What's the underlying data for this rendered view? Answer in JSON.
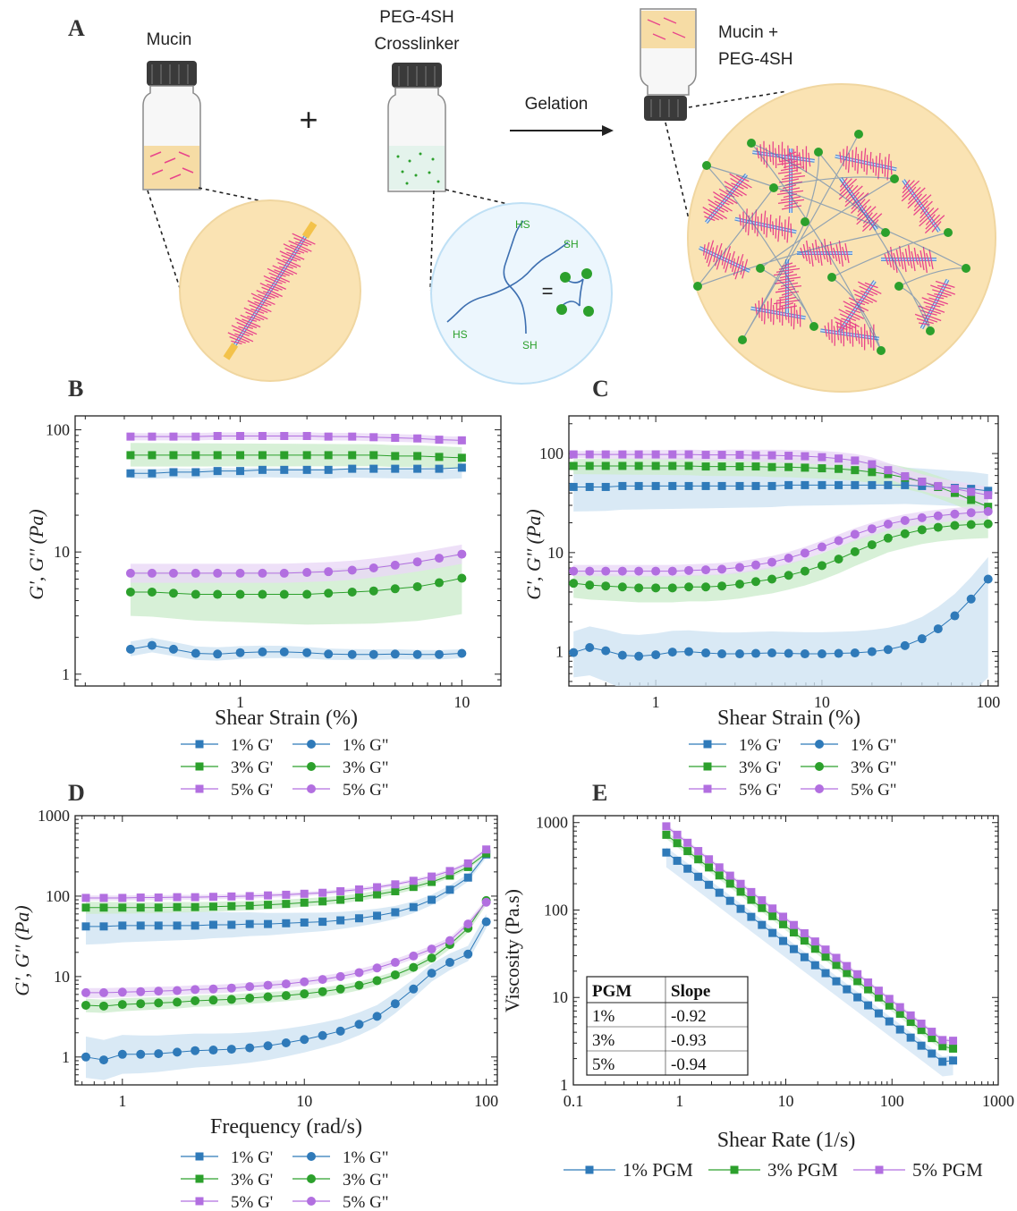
{
  "panel_labels": {
    "A": "A",
    "B": "B",
    "C": "C",
    "D": "D",
    "E": "E"
  },
  "schematic": {
    "mucin_label": "Mucin",
    "plus": "+",
    "crosslinker_label_1": "PEG-4SH",
    "crosslinker_label_2": "Crosslinker",
    "gelation_label": "Gelation",
    "product_label_1": "Mucin +",
    "product_label_2": "PEG-4SH",
    "equals": "=",
    "thiol_labels": [
      "HS",
      "SH",
      "HS",
      "SH"
    ]
  },
  "colors": {
    "c1": "#2f7ab9",
    "c3": "#2ca02c",
    "c5": "#b26fe0",
    "band1": "#cfe3f3",
    "band3": "#cdeccd",
    "band5": "#ead8f6",
    "mucin_pink": "#e8458b",
    "circle_fill": "#fae3b3",
    "peg_blue": "#dcefff"
  },
  "chart_data": [
    {
      "panel": "B",
      "type": "line",
      "xscale": "log",
      "yscale": "log",
      "xlim": [
        0.18,
        15
      ],
      "ylim": [
        0.8,
        130
      ],
      "xlabel": "Shear Strain (%)",
      "ylabel": "G', G'' (Pa)",
      "xticks": [
        {
          "v": 1,
          "t": "1"
        },
        {
          "v": 10,
          "t": "10"
        }
      ],
      "yticks": [
        {
          "v": 1,
          "t": "1"
        },
        {
          "v": 10,
          "t": "10"
        },
        {
          "v": 100,
          "t": "100"
        }
      ],
      "x": [
        0.32,
        0.4,
        0.5,
        0.63,
        0.79,
        1,
        1.26,
        1.58,
        2,
        2.5,
        3.2,
        4,
        5,
        6.3,
        7.9,
        10
      ],
      "series": [
        {
          "name": "1% G'",
          "color": "c1",
          "marker": "square",
          "values": [
            44,
            44,
            45,
            45,
            46,
            46,
            47,
            47,
            47,
            47,
            48,
            48,
            48,
            48,
            48,
            49
          ],
          "band": [
            [
              40,
              48
            ],
            [
              40,
              48
            ]
          ]
        },
        {
          "name": "3% G'",
          "color": "c3",
          "marker": "square",
          "values": [
            62,
            62,
            62,
            62,
            62,
            62,
            62,
            62,
            62,
            62,
            62,
            62,
            61,
            61,
            60,
            59
          ],
          "band": [
            [
              50,
              78
            ],
            [
              48,
              72
            ]
          ]
        },
        {
          "name": "5% G'",
          "color": "c5",
          "marker": "square",
          "values": [
            88,
            88,
            88,
            88,
            89,
            89,
            89,
            89,
            89,
            88,
            88,
            87,
            86,
            85,
            83,
            82
          ],
          "band": [
            [
              82,
              94
            ],
            [
              76,
              88
            ]
          ]
        },
        {
          "name": "1% G\"",
          "color": "c1",
          "marker": "circle",
          "values": [
            1.6,
            1.72,
            1.6,
            1.48,
            1.46,
            1.5,
            1.52,
            1.52,
            1.5,
            1.46,
            1.45,
            1.45,
            1.46,
            1.45,
            1.45,
            1.48
          ],
          "band": [
            [
              1.4,
              1.85
            ],
            [
              1.35,
              1.6
            ]
          ]
        },
        {
          "name": "3% G\"",
          "color": "c3",
          "marker": "circle",
          "values": [
            4.7,
            4.7,
            4.6,
            4.5,
            4.5,
            4.5,
            4.5,
            4.5,
            4.5,
            4.6,
            4.7,
            4.8,
            5.0,
            5.2,
            5.6,
            6.1
          ],
          "band": [
            [
              3.0,
              7.0
            ],
            [
              3.1,
              10
            ]
          ]
        },
        {
          "name": "5% G\"",
          "color": "c5",
          "marker": "circle",
          "values": [
            6.7,
            6.7,
            6.7,
            6.7,
            6.7,
            6.7,
            6.7,
            6.7,
            6.8,
            6.9,
            7.1,
            7.4,
            7.8,
            8.3,
            8.9,
            9.6
          ],
          "band": [
            [
              5.6,
              8.0
            ],
            [
              8.0,
              11.5
            ]
          ]
        }
      ]
    },
    {
      "panel": "C",
      "type": "line",
      "xscale": "log",
      "yscale": "log",
      "xlim": [
        0.3,
        115
      ],
      "ylim": [
        0.45,
        240
      ],
      "xlabel": "Shear Strain (%)",
      "ylabel": "G', G'' (Pa)",
      "xticks": [
        {
          "v": 1,
          "t": "1"
        },
        {
          "v": 10,
          "t": "10"
        },
        {
          "v": 100,
          "t": "100"
        }
      ],
      "yticks": [
        {
          "v": 1,
          "t": "1"
        },
        {
          "v": 10,
          "t": "10"
        },
        {
          "v": 100,
          "t": "100"
        }
      ],
      "x": [
        0.32,
        0.4,
        0.5,
        0.63,
        0.79,
        1,
        1.26,
        1.58,
        2,
        2.5,
        3.2,
        4,
        5,
        6.3,
        7.9,
        10,
        12.6,
        15.8,
        20,
        25,
        31.6,
        40,
        50,
        63,
        79,
        100
      ],
      "series": [
        {
          "name": "1% G'",
          "color": "c1",
          "marker": "square",
          "values": [
            46,
            46,
            46,
            47,
            47,
            47,
            47,
            47,
            47,
            47,
            47,
            47,
            47,
            48,
            48,
            48,
            48,
            48,
            48,
            48,
            48,
            47,
            46,
            45,
            44,
            42
          ],
          "band": [
            [
              26,
              75
            ],
            [
              28,
              62
            ]
          ]
        },
        {
          "name": "3% G'",
          "color": "c3",
          "marker": "square",
          "values": [
            75,
            75,
            75,
            75,
            75,
            75,
            75,
            75,
            74,
            74,
            74,
            74,
            73,
            73,
            72,
            71,
            70,
            68,
            65,
            62,
            57,
            52,
            46,
            40,
            34,
            29
          ],
          "band": [
            [
              62,
              88
            ],
            [
              22,
              38
            ]
          ]
        },
        {
          "name": "5% G'",
          "color": "c5",
          "marker": "square",
          "values": [
            98,
            98,
            98,
            98,
            98,
            98,
            98,
            98,
            97,
            97,
            97,
            96,
            96,
            95,
            94,
            92,
            89,
            85,
            78,
            68,
            59,
            52,
            47,
            44,
            41,
            38
          ],
          "band": [
            [
              90,
              106
            ],
            [
              30,
              46
            ]
          ]
        },
        {
          "name": "1% G\"",
          "color": "c1",
          "marker": "circle",
          "values": [
            0.98,
            1.1,
            1.02,
            0.92,
            0.9,
            0.93,
            0.99,
            1.0,
            0.97,
            0.95,
            0.95,
            0.96,
            0.97,
            0.96,
            0.95,
            0.95,
            0.96,
            0.97,
            1.0,
            1.05,
            1.15,
            1.35,
            1.7,
            2.3,
            3.4,
            5.4
          ],
          "band": [
            [
              0.55,
              1.6
            ],
            [
              0.55,
              9
            ]
          ]
        },
        {
          "name": "3% G\"",
          "color": "c3",
          "marker": "circle",
          "values": [
            4.9,
            4.7,
            4.6,
            4.5,
            4.4,
            4.4,
            4.4,
            4.5,
            4.5,
            4.6,
            4.8,
            5.1,
            5.4,
            5.9,
            6.5,
            7.4,
            8.6,
            10.2,
            12,
            14,
            15.5,
            17,
            18,
            18.8,
            19.2,
            19.5
          ],
          "band": [
            [
              3.5,
              6.5
            ],
            [
              14,
              26
            ]
          ]
        },
        {
          "name": "5% G\"",
          "color": "c5",
          "marker": "circle",
          "values": [
            6.5,
            6.5,
            6.5,
            6.5,
            6.5,
            6.5,
            6.5,
            6.6,
            6.7,
            6.8,
            7.1,
            7.5,
            8.0,
            8.8,
            9.9,
            11.4,
            13.2,
            15.3,
            17.4,
            19.4,
            21.1,
            22.5,
            23.5,
            24.5,
            25.3,
            26
          ],
          "band": [
            [
              5.8,
              7.5
            ],
            [
              22,
              30
            ]
          ]
        }
      ]
    },
    {
      "panel": "D",
      "type": "line",
      "xscale": "log",
      "yscale": "log",
      "xlim": [
        0.55,
        115
      ],
      "ylim": [
        0.45,
        1000
      ],
      "xlabel": "Frequency (rad/s)",
      "ylabel": "G', G'' (Pa)",
      "xticks": [
        {
          "v": 1,
          "t": "1"
        },
        {
          "v": 10,
          "t": "10"
        },
        {
          "v": 100,
          "t": "100"
        }
      ],
      "yticks": [
        {
          "v": 1,
          "t": "1"
        },
        {
          "v": 10,
          "t": "10"
        },
        {
          "v": 100,
          "t": "100"
        },
        {
          "v": 1000,
          "t": "1000"
        }
      ],
      "x": [
        0.63,
        0.79,
        1,
        1.26,
        1.58,
        2,
        2.51,
        3.16,
        3.98,
        5.01,
        6.31,
        7.94,
        10,
        12.6,
        15.8,
        20,
        25.1,
        31.6,
        39.8,
        50.1,
        63.1,
        79.4,
        100
      ],
      "series": [
        {
          "name": "1% G'",
          "color": "c1",
          "marker": "square",
          "values": [
            42,
            42,
            43,
            43,
            43,
            43,
            43,
            44,
            44,
            45,
            45,
            46,
            47,
            48,
            50,
            53,
            57,
            63,
            73,
            90,
            120,
            170,
            330
          ],
          "band": [
            [
              25,
              70
            ],
            [
              300,
              360
            ]
          ]
        },
        {
          "name": "3% G'",
          "color": "c3",
          "marker": "square",
          "values": [
            72,
            72,
            72,
            72,
            72,
            73,
            73,
            74,
            75,
            76,
            78,
            80,
            83,
            86,
            90,
            96,
            105,
            115,
            130,
            150,
            180,
            230,
            340
          ],
          "band": [
            [
              60,
              85
            ],
            [
              320,
              370
            ]
          ]
        },
        {
          "name": "5% G'",
          "color": "c5",
          "marker": "square",
          "values": [
            95,
            95,
            95,
            96,
            96,
            97,
            97,
            98,
            99,
            100,
            102,
            104,
            107,
            110,
            115,
            121,
            129,
            140,
            155,
            175,
            205,
            255,
            380
          ],
          "band": [
            [
              88,
              102
            ],
            [
              360,
              400
            ]
          ]
        },
        {
          "name": "1% G\"",
          "color": "c1",
          "marker": "circle",
          "values": [
            1.0,
            0.92,
            1.08,
            1.08,
            1.1,
            1.15,
            1.2,
            1.22,
            1.25,
            1.3,
            1.38,
            1.5,
            1.65,
            1.85,
            2.1,
            2.55,
            3.2,
            4.6,
            7,
            11,
            15,
            19,
            48
          ],
          "band": [
            [
              0.55,
              1.8
            ],
            [
              40,
              60
            ]
          ]
        },
        {
          "name": "3% G\"",
          "color": "c3",
          "marker": "circle",
          "values": [
            4.4,
            4.3,
            4.5,
            4.6,
            4.7,
            4.8,
            5.0,
            5.1,
            5.2,
            5.4,
            5.6,
            5.8,
            6.1,
            6.5,
            7.0,
            7.8,
            8.9,
            10.5,
            13,
            17,
            25,
            40,
            88
          ],
          "band": [
            [
              3.6,
              5.3
            ],
            [
              78,
              95
            ]
          ]
        },
        {
          "name": "5% G\"",
          "color": "c5",
          "marker": "circle",
          "values": [
            6.3,
            6.3,
            6.4,
            6.5,
            6.6,
            6.7,
            6.9,
            7.0,
            7.2,
            7.5,
            7.8,
            8.1,
            8.6,
            9.2,
            10.0,
            11.2,
            12.8,
            15,
            18,
            22,
            28,
            45,
            84
          ],
          "band": [
            [
              5.4,
              7.2
            ],
            [
              78,
              92
            ]
          ]
        }
      ]
    },
    {
      "panel": "E",
      "type": "line",
      "xscale": "log",
      "yscale": "log",
      "xlim": [
        0.1,
        1000
      ],
      "ylim": [
        1,
        1200
      ],
      "xlabel": "Shear Rate (1/s)",
      "ylabel": "Viscosity (Pa.s)",
      "xticks": [
        {
          "v": 0.1,
          "t": "0.1"
        },
        {
          "v": 1,
          "t": "1"
        },
        {
          "v": 10,
          "t": "10"
        },
        {
          "v": 100,
          "t": "100"
        },
        {
          "v": 1000,
          "t": "1000"
        }
      ],
      "yticks": [
        {
          "v": 1,
          "t": "1"
        },
        {
          "v": 10,
          "t": "10"
        },
        {
          "v": 100,
          "t": "100"
        },
        {
          "v": 1000,
          "t": "1000"
        }
      ],
      "x": [
        0.75,
        0.95,
        1.19,
        1.5,
        1.89,
        2.37,
        2.99,
        3.76,
        4.73,
        5.96,
        7.5,
        9.44,
        11.9,
        15,
        18.9,
        23.7,
        29.9,
        37.6,
        47.3,
        59.6,
        75,
        94.4,
        119,
        150,
        189,
        237,
        299,
        376
      ],
      "series": [
        {
          "name": "1% PGM",
          "color": "c1",
          "marker": "square",
          "band_spread": [
            0.68,
            1.15
          ]
        },
        {
          "name": "3% PGM",
          "color": "c3",
          "marker": "square",
          "band_spread": [
            0.9,
            1.1
          ]
        },
        {
          "name": "5% PGM",
          "color": "c5",
          "marker": "square",
          "band_spread": [
            0.94,
            1.06
          ]
        }
      ],
      "power_law": [
        {
          "name": "1% PGM",
          "k": 349,
          "slope": -0.92,
          "last": 1.9
        },
        {
          "name": "3% PGM",
          "k": 555,
          "slope": -0.93,
          "last": 2.6
        },
        {
          "name": "5% PGM",
          "k": 692,
          "slope": -0.94,
          "last": 3.2
        }
      ],
      "table": {
        "headers": [
          "PGM",
          "Slope"
        ],
        "rows": [
          [
            "1%",
            "-0.92"
          ],
          [
            "3%",
            "-0.93"
          ],
          [
            "5%",
            "-0.94"
          ]
        ]
      }
    }
  ],
  "legends": {
    "B": [
      [
        "1% G'",
        "1% G\""
      ],
      [
        "3% G'",
        "3% G\""
      ],
      [
        "5% G'",
        "5% G\""
      ]
    ],
    "C": [
      [
        "1% G'",
        "1% G\""
      ],
      [
        "3% G'",
        "3% G\""
      ],
      [
        "5% G'",
        "5% G\""
      ]
    ],
    "D": [
      [
        "1% G'",
        "1% G\""
      ],
      [
        "3% G'",
        "3% G\""
      ],
      [
        "5% G'",
        "5% G\""
      ]
    ],
    "E": [
      "1% PGM",
      "3% PGM",
      "5% PGM"
    ]
  }
}
